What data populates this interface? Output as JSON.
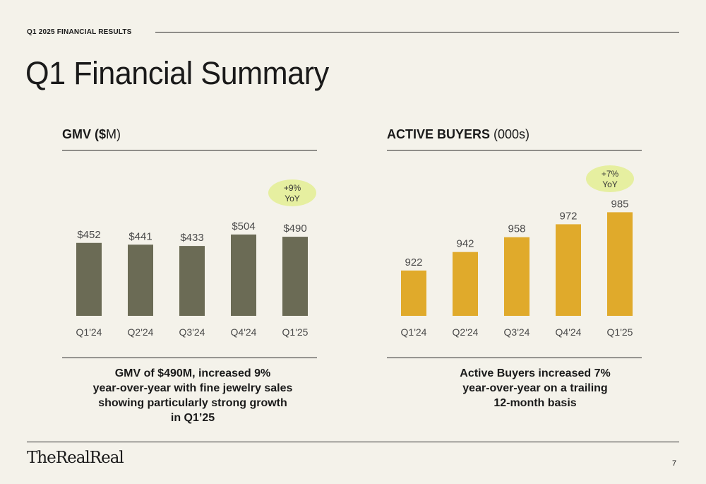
{
  "header": {
    "eyebrow": "Q1 2025 FINANCIAL RESULTS",
    "title": "Q1 Financial Summary"
  },
  "charts_text": {
    "gmv": {
      "title_bold": "GMV ($",
      "title_rest": "M)",
      "badge_line1": "+9%",
      "badge_line2": "YoY",
      "caption": [
        "GMV of $490M, increased 9%",
        "year-over-year with fine jewelry sales",
        "showing particularly strong growth",
        "in Q1’25"
      ]
    },
    "buyers": {
      "title_bold": "ACTIVE BUYERS",
      "title_rest": " (000s)",
      "badge_line1": "+7%",
      "badge_line2": "YoY",
      "caption": [
        "Active Buyers increased 7%",
        "year-over-year on a trailing",
        "12-month basis"
      ]
    }
  },
  "chart_data": [
    {
      "type": "bar",
      "title": "GMV ($M)",
      "categories": [
        "Q1'24",
        "Q2'24",
        "Q3'24",
        "Q4'24",
        "Q1'25"
      ],
      "values": [
        452,
        441,
        433,
        504,
        490
      ],
      "value_labels": [
        "$452",
        "$441",
        "$433",
        "$504",
        "$490"
      ],
      "color": "#6b6b55",
      "annotation": "+9% YoY"
    },
    {
      "type": "bar",
      "title": "ACTIVE BUYERS (000s)",
      "categories": [
        "Q1'24",
        "Q2'24",
        "Q3'24",
        "Q4'24",
        "Q1'25"
      ],
      "values": [
        922,
        942,
        958,
        972,
        985
      ],
      "value_labels": [
        "922",
        "942",
        "958",
        "972",
        "985"
      ],
      "color": "#e0aa2b",
      "annotation": "+7% YoY"
    }
  ],
  "colors": {
    "background": "#f4f2ea",
    "badge": "#e6efa0"
  },
  "footer": {
    "logo": "TheRealReal",
    "page_number": "7"
  }
}
